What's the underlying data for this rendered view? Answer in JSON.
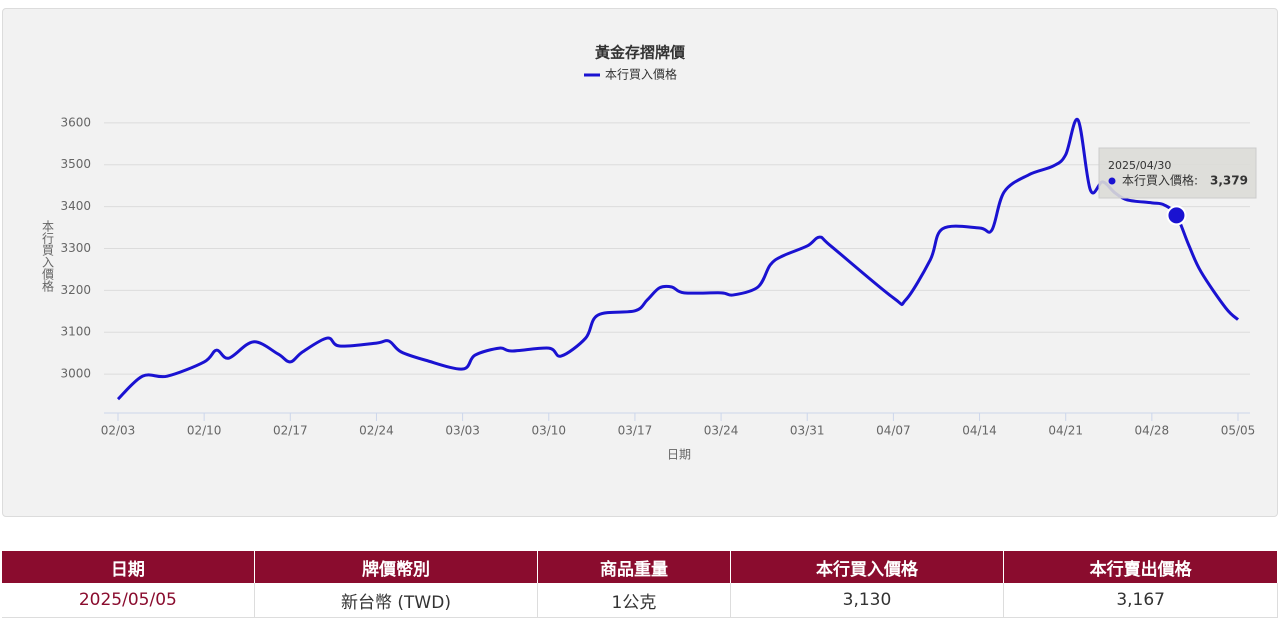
{
  "chart_data": {
    "type": "line",
    "title": "黃金存摺牌價",
    "x_label": "日期",
    "y_label": "本行買入價格",
    "x": [
      "02/03",
      "02/05",
      "02/07",
      "02/10",
      "02/11",
      "02/12",
      "02/14",
      "02/16",
      "02/17",
      "02/18",
      "02/20",
      "02/21",
      "02/24",
      "02/25",
      "02/26",
      "02/28",
      "03/03",
      "03/04",
      "03/06",
      "03/07",
      "03/10",
      "03/11",
      "03/13",
      "03/14",
      "03/17",
      "03/18",
      "03/19",
      "03/20",
      "03/21",
      "03/24",
      "03/25",
      "03/27",
      "03/28",
      "03/29",
      "03/31",
      "04/01",
      "04/02",
      "04/07",
      "04/08",
      "04/10",
      "04/11",
      "04/14",
      "04/15",
      "04/16",
      "04/18",
      "04/20",
      "04/21",
      "04/22",
      "04/23",
      "04/24",
      "04/25",
      "04/26",
      "04/28",
      "04/29",
      "04/30",
      "05/01",
      "05/02",
      "05/04",
      "05/05"
    ],
    "series": [
      {
        "name": "本行買入價格",
        "color": "#1a12d1",
        "values": [
          2940,
          2995,
          2995,
          3029,
          3057,
          3038,
          3077,
          3048,
          3029,
          3053,
          3086,
          3067,
          3074,
          3079,
          3053,
          3033,
          3012,
          3045,
          3062,
          3055,
          3062,
          3043,
          3086,
          3141,
          3151,
          3177,
          3206,
          3208,
          3194,
          3194,
          3189,
          3208,
          3261,
          3282,
          3306,
          3327,
          3304,
          3182,
          3177,
          3273,
          3347,
          3349,
          3344,
          3435,
          3476,
          3497,
          3524,
          3607,
          3440,
          3459,
          3433,
          3416,
          3409,
          3404,
          3379,
          3308,
          3244,
          3158,
          3130
        ]
      }
    ],
    "xticks": [
      "02/03",
      "02/10",
      "02/17",
      "02/24",
      "03/03",
      "03/10",
      "03/17",
      "03/24",
      "03/31",
      "04/07",
      "04/14",
      "04/21",
      "04/28",
      "05/05"
    ],
    "ylim": [
      2907,
      3700
    ],
    "yticks": [
      3000,
      3100,
      3200,
      3300,
      3400,
      3500,
      3600
    ],
    "grid": true,
    "tooltip": {
      "date": "2025/04/30",
      "label": "本行買入價格:",
      "value": 3379,
      "value_label": "3,379"
    }
  },
  "table": {
    "header": [
      "日期",
      "牌價幣別",
      "商品重量",
      "本行買入價格",
      "本行賣出價格"
    ],
    "rows": [
      [
        "2025/05/05",
        "新台幣 (TWD)",
        "1公克",
        "3,130",
        "3,167"
      ]
    ]
  }
}
